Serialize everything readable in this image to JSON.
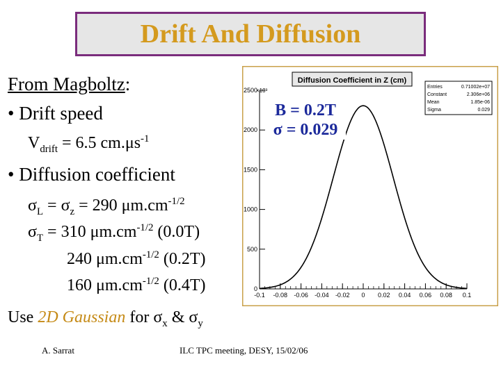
{
  "slide": {
    "title": "Drift And Diffusion",
    "source_label": "From Magboltz",
    "source_colon": ":",
    "bullet1": "Drift speed",
    "vdrift_v": "V",
    "vdrift_sub": "drift",
    "vdrift_eq": " = 6.5 cm.",
    "vdrift_mu": "μ",
    "vdrift_s": "s",
    "vdrift_exp": "-1",
    "bullet2": "Diffusion coefficient",
    "sigma": "σ",
    "sub_L": "L",
    "sub_z": "z",
    "sub_T": "T",
    "eq": " = ",
    "val290": "290 ",
    "val310": "310 ",
    "val240": "240 ",
    "val160": "160 ",
    "mu": "μ",
    "unit": "m.cm",
    "exp_half": "-1/2",
    "field00": " (0.0T)",
    "field02": " (0.2T)",
    "field04": " (0.4T)",
    "use_text": "Use ",
    "gauss_text": "2D Gaussian",
    "for_text": " for ",
    "sub_x": "x",
    "amp": " & ",
    "sub_y": "y"
  },
  "footer": {
    "author": "A. Sarrat",
    "meeting": "ILC TPC meeting, DESY, 15/02/06"
  },
  "plot_annotation": {
    "line1": "B = 0.2T",
    "sigma_sym": "σ",
    "line2": " = 0.029"
  },
  "colors": {
    "title": "#d49a1e",
    "title_border": "#7a2c7c",
    "gaussian_text": "#c58a16",
    "annotation": "#1c2a9b",
    "plot_frame": "#c9a04a"
  },
  "chart_data": {
    "type": "line",
    "title": "Diffusion Coefficient in Z (cm)",
    "xlim": [
      -0.1,
      0.1
    ],
    "ylim": [
      0,
      2500
    ],
    "y_multiplier_label": "×10³",
    "x_ticks": [
      "-0.1",
      "-0.08",
      "-0.06",
      "-0.04",
      "-0.02",
      "0",
      "0.02",
      "0.04",
      "0.06",
      "0.08",
      "0.1"
    ],
    "y_ticks": [
      "0",
      "500",
      "1000",
      "1500",
      "2000",
      "2500"
    ],
    "stats": [
      {
        "name": "Entries",
        "value": "0.71002e+07"
      },
      {
        "name": "Constant",
        "value": "2.306e+06"
      },
      {
        "name": "Mean",
        "value": "1.85e-06"
      },
      {
        "name": "Sigma",
        "value": "0.029"
      }
    ],
    "series": [
      {
        "type": "gaussian",
        "constant": 2306,
        "mean": 1.85e-06,
        "sigma": 0.029
      }
    ],
    "grid": false
  }
}
